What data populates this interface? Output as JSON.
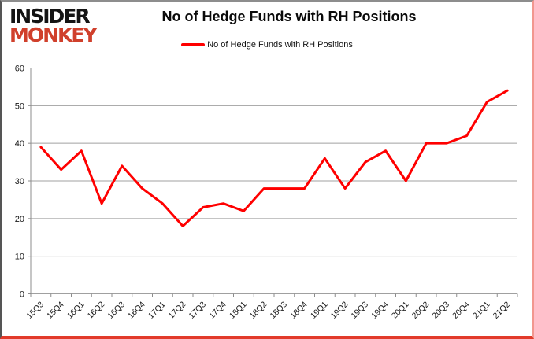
{
  "logo": {
    "line1": "INSIDER",
    "line2": "MONKEY"
  },
  "header": {
    "title": "No of Hedge Funds with RH Positions"
  },
  "legend": {
    "label": "No of Hedge Funds with RH Positions"
  },
  "chart_data": {
    "type": "line",
    "title": "No of Hedge Funds with RH Positions",
    "categories": [
      "15Q3",
      "15Q4",
      "16Q1",
      "16Q2",
      "16Q3",
      "16Q4",
      "17Q1",
      "17Q2",
      "17Q3",
      "17Q4",
      "18Q1",
      "18Q2",
      "18Q3",
      "18Q4",
      "19Q1",
      "19Q2",
      "19Q3",
      "19Q4",
      "20Q1",
      "20Q2",
      "20Q3",
      "20Q4",
      "21Q1",
      "21Q2"
    ],
    "values": [
      39,
      33,
      38,
      24,
      34,
      28,
      24,
      18,
      23,
      24,
      22,
      28,
      28,
      28,
      36,
      28,
      35,
      38,
      30,
      40,
      40,
      42,
      51,
      54
    ],
    "series_name": "No of Hedge Funds with RH Positions",
    "xlabel": "",
    "ylabel": "",
    "ylim": [
      0,
      60
    ],
    "ytick_step": 10,
    "grid": true,
    "legend_position": "top-center",
    "line_color": "#ff0000",
    "grid_color": "#a0a0a0",
    "axis_color": "#8c8c8c",
    "tick_label_color": "#1a1a1a"
  }
}
